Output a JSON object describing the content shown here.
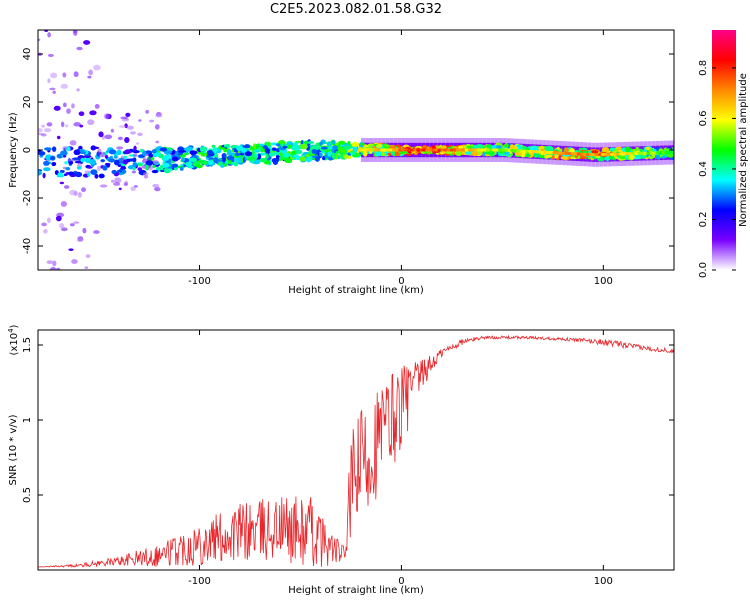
{
  "title": "C2E5.2023.082.01.58.G32",
  "chart_data": [
    {
      "type": "heatmap",
      "xlabel": "Height of straight line (km)",
      "ylabel": "Frequency (Hz)",
      "xlim": [
        -180,
        135
      ],
      "ylim": [
        -50,
        50
      ],
      "xticks": [
        -100,
        0,
        100
      ],
      "yticks": [
        -40,
        -20,
        0,
        20,
        40
      ],
      "colorbar": {
        "label": "Normalized spectral amplitude",
        "ticks": [
          0.0,
          0.2,
          0.4,
          0.6,
          0.8
        ],
        "range": [
          0,
          0.95
        ],
        "colors": [
          "#ffffff",
          "#7700ff",
          "#0000ff",
          "#00ffff",
          "#00ff00",
          "#ffff00",
          "#ff8800",
          "#ff0000",
          "#ff0088"
        ]
      },
      "ridge": [
        {
          "x": -150,
          "f": -5,
          "amp": 0.35,
          "spread": 6
        },
        {
          "x": -120,
          "f": -4,
          "amp": 0.45,
          "spread": 5
        },
        {
          "x": -80,
          "f": -2,
          "amp": 0.5,
          "spread": 4
        },
        {
          "x": -40,
          "f": 0,
          "amp": 0.5,
          "spread": 4
        },
        {
          "x": -10,
          "f": 0,
          "amp": 0.7,
          "spread": 2
        },
        {
          "x": 10,
          "f": 0,
          "amp": 0.9,
          "spread": 1
        },
        {
          "x": 50,
          "f": 0,
          "amp": 0.6,
          "spread": 2
        },
        {
          "x": 95,
          "f": -2,
          "amp": 0.8,
          "spread": 2
        },
        {
          "x": 135,
          "f": -1,
          "amp": 0.5,
          "spread": 2
        }
      ]
    },
    {
      "type": "line",
      "xlabel": "Height of straight line (km)",
      "ylabel": "SNR (10 * v/v)",
      "yscale_label": "(x10",
      "yscale_exp": "4",
      "yscale_close": ")",
      "xlim": [
        -180,
        135
      ],
      "ylim": [
        0,
        1.6
      ],
      "xticks": [
        -100,
        0,
        100
      ],
      "yticks": [
        0.5,
        1.0,
        1.5
      ],
      "color": "#e8252a",
      "series": [
        {
          "x": [
            -180,
            -160,
            -140,
            -120,
            -100,
            -80,
            -60,
            -45,
            -35,
            -28,
            -25,
            -20,
            -15,
            -10,
            -5,
            0,
            10,
            20,
            30,
            40,
            60,
            80,
            100,
            110,
            120,
            135
          ],
          "y": [
            0.02,
            0.03,
            0.06,
            0.1,
            0.18,
            0.25,
            0.28,
            0.25,
            0.15,
            0.1,
            0.55,
            0.7,
            0.8,
            0.9,
            1.0,
            1.1,
            1.3,
            1.45,
            1.52,
            1.55,
            1.55,
            1.54,
            1.52,
            1.5,
            1.48,
            1.46
          ],
          "noise": [
            0.0,
            0.01,
            0.03,
            0.08,
            0.15,
            0.2,
            0.22,
            0.25,
            0.12,
            0.05,
            0.35,
            0.4,
            0.4,
            0.35,
            0.35,
            0.3,
            0.1,
            0.03,
            0.02,
            0.01,
            0.01,
            0.01,
            0.02,
            0.02,
            0.015,
            0.015
          ]
        }
      ]
    }
  ]
}
